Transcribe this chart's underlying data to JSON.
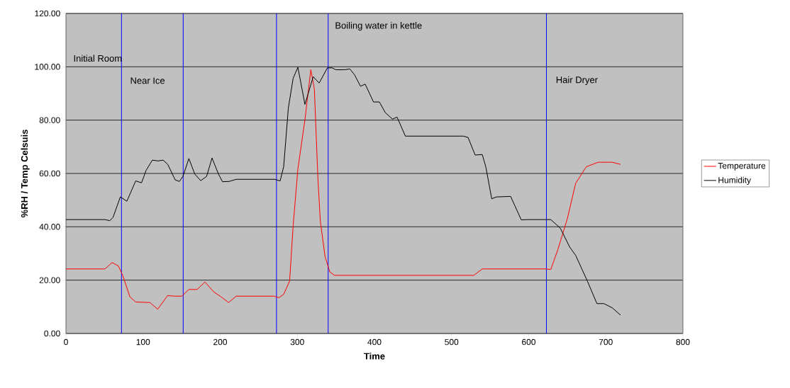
{
  "chart_data": {
    "type": "line",
    "xlabel": "Time",
    "ylabel": "%RH / Temp Celsuis",
    "xlim": [
      0,
      800
    ],
    "xticks": [
      0,
      100,
      200,
      300,
      400,
      500,
      600,
      700,
      800
    ],
    "ylim": [
      0,
      120
    ],
    "yticks": [
      {
        "value": 0,
        "label": "0.00"
      },
      {
        "value": 20,
        "label": "20.00"
      },
      {
        "value": 40,
        "label": "40.00"
      },
      {
        "value": 60,
        "label": "60.00"
      },
      {
        "value": 80,
        "label": "80.00"
      },
      {
        "value": 100,
        "label": "100.00"
      },
      {
        "value": 120,
        "label": "120.00"
      }
    ],
    "grid": "y",
    "legend": "right",
    "marker": "none",
    "line_style": "solid",
    "series": [
      {
        "name": "Temperature",
        "color": "#ff0000",
        "x": [
          0,
          50.6,
          59.8,
          68,
          73.6,
          82.8,
          90.4,
          108.8,
          118.9,
          131.8,
          141,
          150.2,
          159.4,
          170.1,
          180.2,
          191.6,
          200.8,
          210.9,
          220.7,
          269.7,
          276.2,
          282.3,
          290,
          294.6,
          300.7,
          309.9,
          317.5,
          322.1,
          326.7,
          329.8,
          336,
          342.1,
          348.2,
          529,
          539.8,
          622.5,
          628.7,
          637.9,
          650.1,
          660.9,
          674.7,
          690,
          708.4,
          719.1
        ],
        "values": [
          24.2,
          24.2,
          26.6,
          25.3,
          21.8,
          13.8,
          11.8,
          11.6,
          9.1,
          14.2,
          14,
          14,
          16.5,
          16.5,
          19.3,
          15.6,
          13.8,
          11.6,
          14,
          14,
          13.4,
          14.7,
          19.6,
          40.4,
          61.6,
          80.2,
          98.9,
          91.7,
          58.1,
          42.2,
          28.8,
          23.1,
          21.8,
          21.8,
          24.2,
          24.2,
          24,
          31.5,
          43,
          56.3,
          62.5,
          64.2,
          64.2,
          63.4
        ]
      },
      {
        "name": "Humidity",
        "color": "#000000",
        "x": [
          0,
          50.6,
          56.7,
          61,
          70.5,
          79,
          90.4,
          98,
          104,
          112,
          119.5,
          126,
          132,
          141.6,
          147,
          151.7,
          159.4,
          167,
          174.7,
          182.4,
          189.4,
          197.7,
          203,
          211.5,
          220.7,
          271,
          277.7,
          282.3,
          288.4,
          294.6,
          300.7,
          309.9,
          320.6,
          328.3,
          339,
          345.1,
          349.7,
          362,
          368.1,
          374.2,
          381.9,
          388,
          398.8,
          406.4,
          414.1,
          423.3,
          429.4,
          440.1,
          446.3,
          515.2,
          521.4,
          530.6,
          539.8,
          544.4,
          552.1,
          558.2,
          576.6,
          590.4,
          598,
          628.7,
          641,
          653.2,
          660.9,
          676.2,
          688.5,
          697.6,
          708.4,
          719.1
        ],
        "values": [
          42.7,
          42.7,
          42.3,
          43.5,
          51.2,
          49.6,
          57.2,
          56.5,
          61.2,
          65,
          64.7,
          65,
          63.4,
          57.6,
          57,
          58.9,
          65.6,
          59.8,
          57.3,
          58.9,
          65.8,
          59.8,
          56.9,
          57,
          57.8,
          57.8,
          57.2,
          62.5,
          84.6,
          95.7,
          99.8,
          85.9,
          96.3,
          93.9,
          99.6,
          99.6,
          98.9,
          98.9,
          99.2,
          97,
          92.7,
          93.5,
          86.8,
          86.8,
          82.8,
          80.4,
          81.1,
          74,
          74,
          74,
          73.5,
          66.9,
          67.1,
          62.5,
          50.5,
          51.2,
          51.4,
          42.6,
          42.7,
          42.7,
          39.5,
          32.4,
          29.3,
          19.6,
          11.2,
          11.2,
          9.6,
          6.9
        ]
      }
    ],
    "ref_lines": [
      {
        "axis": "x",
        "value": 72,
        "color": "#0000ff"
      },
      {
        "axis": "x",
        "value": 152,
        "color": "#0000ff"
      },
      {
        "axis": "x",
        "value": 273,
        "color": "#0000ff"
      },
      {
        "axis": "x",
        "value": 340,
        "color": "#0000ff"
      },
      {
        "axis": "x",
        "value": 623,
        "color": "#0000ff"
      }
    ],
    "annotations": [
      "Initial Room",
      "Near Ice",
      "Boiling water in kettle",
      "Hair Dryer"
    ]
  }
}
